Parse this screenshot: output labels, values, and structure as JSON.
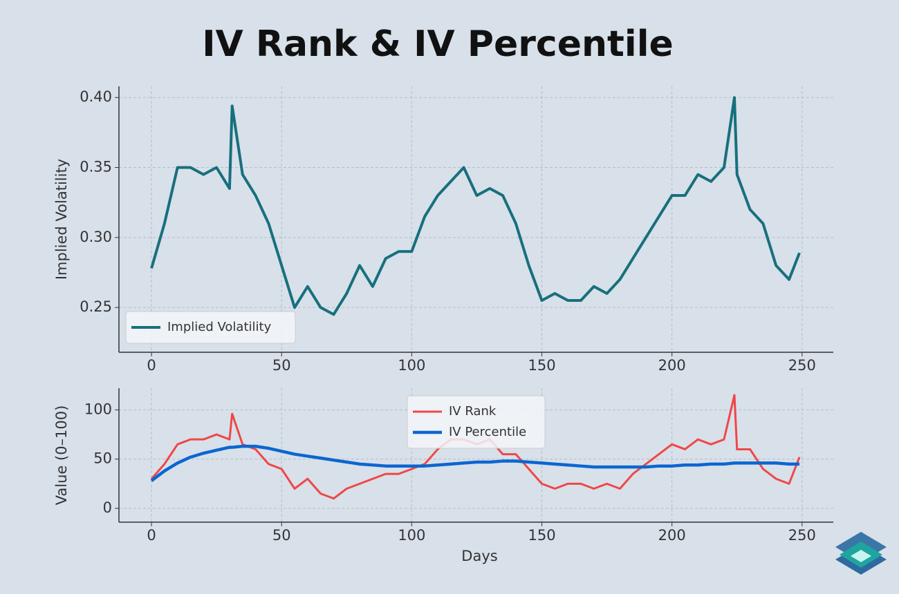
{
  "title": "IV Rank & IV Percentile",
  "chart_data": [
    {
      "type": "line",
      "ylabel": "Implied Volatility",
      "x": [
        0,
        5,
        10,
        15,
        20,
        25,
        30,
        31,
        35,
        40,
        45,
        50,
        55,
        60,
        65,
        70,
        75,
        80,
        85,
        90,
        95,
        100,
        105,
        110,
        115,
        120,
        125,
        130,
        135,
        140,
        145,
        150,
        155,
        160,
        165,
        170,
        175,
        180,
        185,
        190,
        195,
        200,
        205,
        210,
        215,
        220,
        224,
        225,
        230,
        235,
        240,
        245,
        249
      ],
      "series": [
        {
          "name": "Implied Volatility",
          "color": "#17707c",
          "values": [
            0.278,
            0.31,
            0.35,
            0.35,
            0.345,
            0.35,
            0.335,
            0.394,
            0.345,
            0.33,
            0.31,
            0.28,
            0.25,
            0.265,
            0.25,
            0.245,
            0.26,
            0.28,
            0.265,
            0.285,
            0.29,
            0.29,
            0.315,
            0.33,
            0.34,
            0.35,
            0.33,
            0.335,
            0.33,
            0.31,
            0.28,
            0.255,
            0.26,
            0.255,
            0.255,
            0.265,
            0.26,
            0.27,
            0.285,
            0.3,
            0.315,
            0.33,
            0.33,
            0.345,
            0.34,
            0.35,
            0.4,
            0.345,
            0.32,
            0.31,
            0.28,
            0.27,
            0.289
          ]
        }
      ],
      "xlim": [
        -12.5,
        262
      ],
      "ylim": [
        0.218,
        0.408
      ],
      "xticks": [
        0,
        50,
        100,
        150,
        200,
        250
      ],
      "yticks": [
        0.25,
        {
          "value": 0.3,
          "label": "0.30"
        },
        {
          "value": 0.35,
          "label": "0.35"
        },
        {
          "value": 0.4,
          "label": "0.40"
        }
      ],
      "grid": true,
      "legend": "lower left"
    },
    {
      "type": "line",
      "ylabel": "Value (0–100)",
      "xlabel": "Days",
      "x": [
        0,
        5,
        10,
        15,
        20,
        25,
        30,
        31,
        35,
        40,
        45,
        50,
        55,
        60,
        65,
        70,
        75,
        80,
        85,
        90,
        95,
        100,
        105,
        110,
        115,
        120,
        125,
        130,
        135,
        140,
        145,
        150,
        155,
        160,
        165,
        170,
        175,
        180,
        185,
        190,
        195,
        200,
        205,
        210,
        215,
        220,
        224,
        225,
        230,
        235,
        240,
        245,
        249
      ],
      "series": [
        {
          "name": "IV Rank",
          "color": "#f04747",
          "values": [
            30,
            45,
            65,
            70,
            70,
            75,
            70,
            96,
            65,
            60,
            45,
            40,
            20,
            30,
            15,
            10,
            20,
            25,
            30,
            35,
            35,
            40,
            45,
            60,
            70,
            70,
            65,
            70,
            55,
            55,
            40,
            25,
            20,
            25,
            25,
            20,
            25,
            20,
            35,
            45,
            55,
            65,
            60,
            70,
            65,
            70,
            115,
            60,
            60,
            40,
            30,
            25,
            52
          ]
        },
        {
          "name": "IV Percentile",
          "color": "#0b66d0",
          "values": [
            28,
            38,
            46,
            52,
            56,
            59,
            62,
            62,
            63,
            63,
            61,
            58,
            55,
            53,
            51,
            49,
            47,
            45,
            44,
            43,
            43,
            43,
            43,
            44,
            45,
            46,
            47,
            47,
            48,
            48,
            47,
            46,
            45,
            44,
            43,
            42,
            42,
            42,
            42,
            42,
            43,
            43,
            44,
            44,
            45,
            45,
            46,
            46,
            46,
            46,
            46,
            45,
            45
          ]
        }
      ],
      "xlim": [
        -12.5,
        262
      ],
      "ylim": [
        -14,
        122
      ],
      "xticks": [
        0,
        50,
        100,
        150,
        200,
        250
      ],
      "yticks": [
        0,
        50,
        100
      ],
      "grid": true,
      "legend": "upper center"
    }
  ]
}
